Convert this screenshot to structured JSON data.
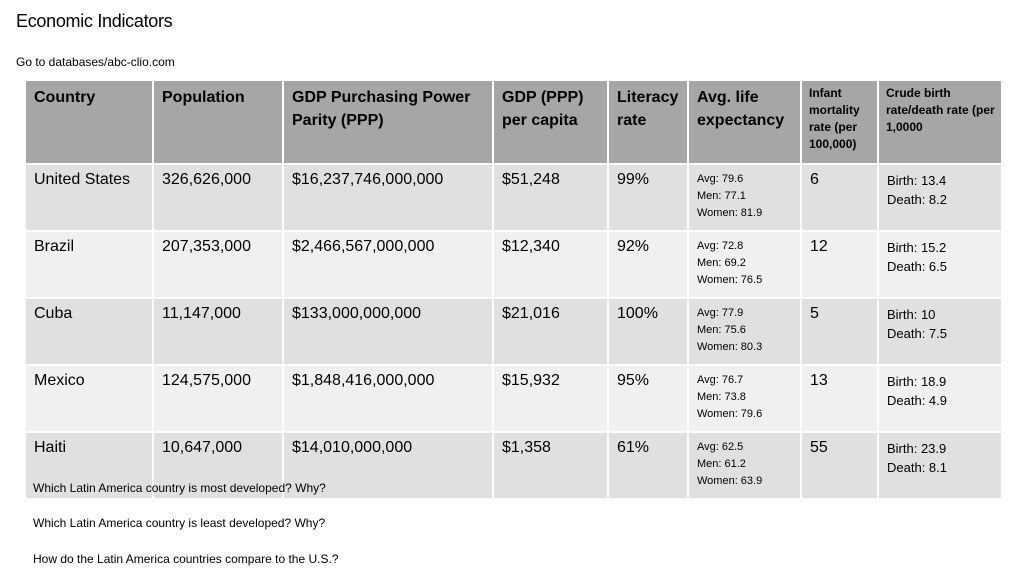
{
  "header": {
    "title": "Economic Indicators",
    "subtitle": "Go to databases/abc-clio.com"
  },
  "table": {
    "columns": [
      "Country",
      "Population",
      "GDP Purchasing Power Parity (PPP)",
      "GDP (PPP) per capita",
      "Literacy rate",
      "Avg. life expectancy",
      "Infant mortality rate (per 100,000)",
      "Crude birth rate/death rate (per 1,0000"
    ],
    "rows": [
      {
        "country": "United States",
        "population": "326,626,000",
        "gdp_ppp": "$16,237,746,000,000",
        "gdp_per_capita": "$51,248",
        "literacy": "99%",
        "life": {
          "avg": "Avg: 79.6",
          "men": "Men: 77.1",
          "women": "Women: 81.9"
        },
        "infant_mortality": "6",
        "crude": {
          "birth": "Birth: 13.4",
          "death": "Death:  8.2"
        }
      },
      {
        "country": "Brazil",
        "population": "207,353,000",
        "gdp_ppp": "$2,466,567,000,000",
        "gdp_per_capita": "$12,340",
        "literacy": "92%",
        "life": {
          "avg": "Avg: 72.8",
          "men": "Men: 69.2",
          "women": "Women: 76.5"
        },
        "infant_mortality": "12",
        "crude": {
          "birth": "Birth: 15.2",
          "death": "Death: 6.5"
        }
      },
      {
        "country": "Cuba",
        "population": "11,147,000",
        "gdp_ppp": "$133,000,000,000",
        "gdp_per_capita": "$21,016",
        "literacy": "100%",
        "life": {
          "avg": "Avg: 77.9",
          "men": "Men: 75.6",
          "women": "Women: 80.3"
        },
        "infant_mortality": "5",
        "crude": {
          "birth": "Birth: 10",
          "death": "Death: 7.5"
        }
      },
      {
        "country": "Mexico",
        "population": "124,575,000",
        "gdp_ppp": "$1,848,416,000,000",
        "gdp_per_capita": "$15,932",
        "literacy": "95%",
        "life": {
          "avg": "Avg: 76.7",
          "men": "Men: 73.8",
          "women": "Women: 79.6"
        },
        "infant_mortality": "13",
        "crude": {
          "birth": "Birth: 18.9",
          "death": "Death: 4.9"
        }
      },
      {
        "country": "Haiti",
        "population": "10,647,000",
        "gdp_ppp": "$14,010,000,000",
        "gdp_per_capita": "$1,358",
        "literacy": "61%",
        "life": {
          "avg": "Avg: 62.5",
          "men": "Men: 61.2",
          "women": "Women: 63.9"
        },
        "infant_mortality": "55",
        "crude": {
          "birth": "Birth: 23.9",
          "death": "Death: 8.1"
        }
      }
    ]
  },
  "questions": [
    "Which Latin America country is most developed?  Why?",
    "Which Latin America country is least developed?  Why?",
    "How do the Latin America countries compare to the U.S.?"
  ],
  "colors": {
    "header_bg": "#a6a6a6",
    "row_dark": "#e0e0e0",
    "row_light": "#f0f0f0"
  }
}
